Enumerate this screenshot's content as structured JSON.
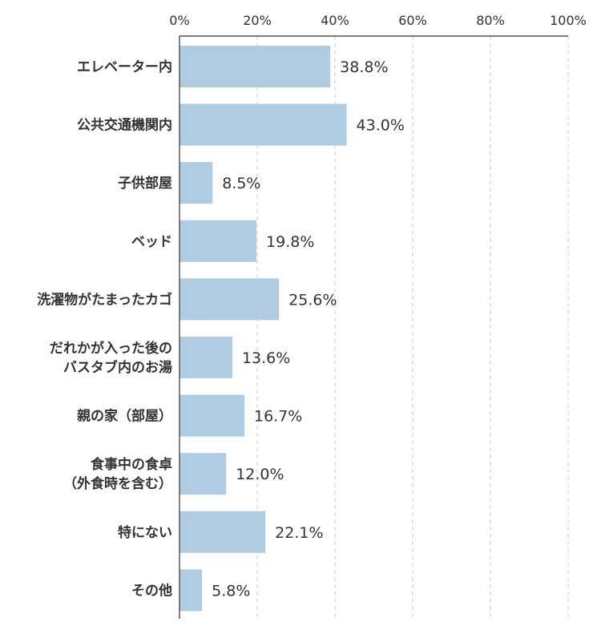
{
  "chart_data": {
    "type": "bar",
    "orientation": "horizontal",
    "categories": [
      [
        "エレベーター内"
      ],
      [
        "公共交通機関内"
      ],
      [
        "子供部屋"
      ],
      [
        "ベッド"
      ],
      [
        "洗濯物がたまったカゴ"
      ],
      [
        "だれかが入った後の",
        "バスタブ内のお湯"
      ],
      [
        "親の家（部屋）"
      ],
      [
        "食事中の食卓",
        "（外食時を含む）"
      ],
      [
        "特にない"
      ],
      [
        "その他"
      ]
    ],
    "values": [
      38.8,
      43.0,
      8.5,
      19.8,
      25.6,
      13.6,
      16.7,
      12.0,
      22.1,
      5.8
    ],
    "value_labels": [
      "38.8%",
      "43.0%",
      "8.5%",
      "19.8%",
      "25.6%",
      "13.6%",
      "16.7%",
      "12.0%",
      "22.1%",
      "5.8%"
    ],
    "xlim": [
      0,
      100
    ],
    "x_ticks": [
      0,
      20,
      40,
      60,
      80,
      100
    ],
    "x_tick_labels": [
      "0%",
      "20%",
      "40%",
      "60%",
      "80%",
      "100%"
    ],
    "axis_position": "top",
    "grid": true,
    "bar_color": "#b0cce3",
    "title": "",
    "xlabel": "",
    "ylabel": ""
  }
}
